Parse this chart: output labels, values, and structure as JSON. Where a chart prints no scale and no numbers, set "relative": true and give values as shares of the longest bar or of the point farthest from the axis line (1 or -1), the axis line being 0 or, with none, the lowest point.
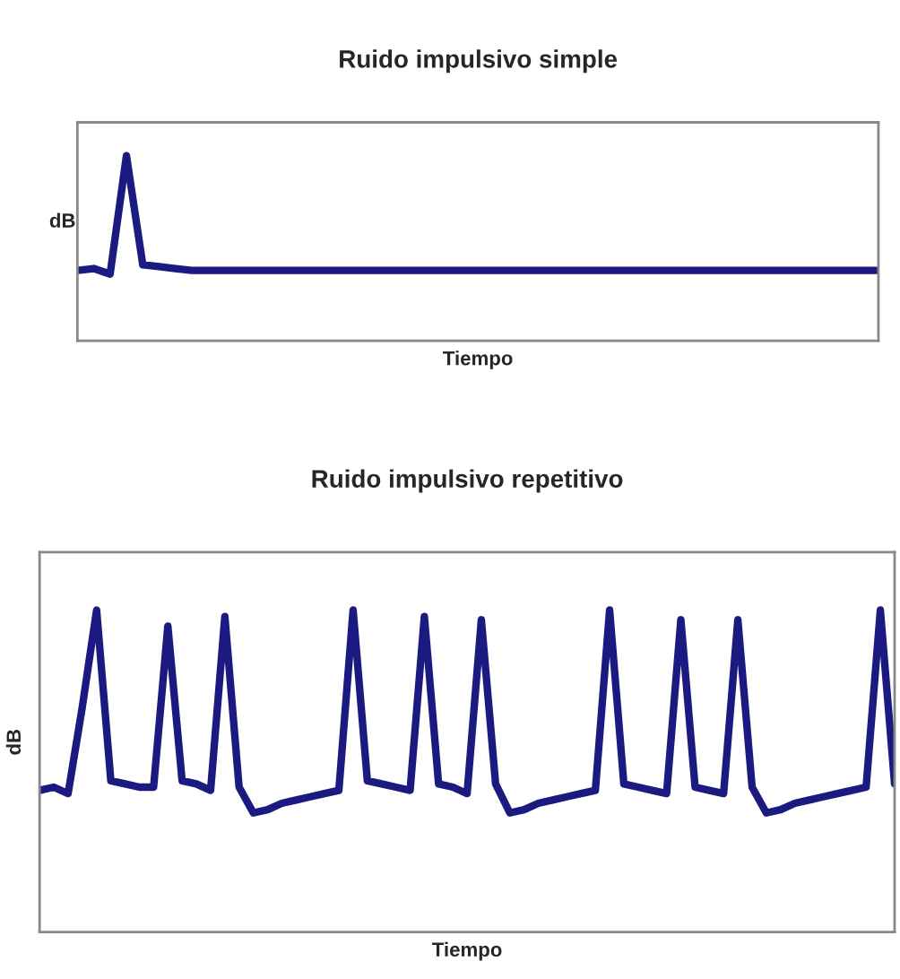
{
  "chart_data": [
    {
      "type": "line",
      "title": "Ruido impulsivo simple",
      "xlabel": "Tiempo",
      "ylabel": "dB",
      "relative": true,
      "legend": false,
      "categories": [
        null,
        null,
        null,
        null,
        null,
        null,
        null,
        null,
        null,
        null,
        null,
        null,
        null,
        null,
        null,
        null,
        null,
        null,
        null,
        null,
        null,
        null,
        null,
        null,
        null,
        null,
        null,
        null,
        null,
        null,
        null,
        null,
        null,
        null,
        null,
        null,
        null,
        null,
        null,
        null,
        null,
        null,
        null,
        null,
        null,
        null,
        null,
        null,
        null,
        null
      ],
      "series": [
        {
          "color": "#1a1a80",
          "values": [
            0.38,
            0.39,
            0.36,
            1.0,
            0.41,
            0.4,
            0.39,
            0.38,
            0.38,
            0.38,
            0.38,
            0.38,
            0.38,
            0.38,
            0.38,
            0.38,
            0.38,
            0.38,
            0.38,
            0.38,
            0.38,
            0.38,
            0.38,
            0.38,
            0.38,
            0.38,
            0.38,
            0.38,
            0.38,
            0.38,
            0.38,
            0.38,
            0.38,
            0.38,
            0.38,
            0.38,
            0.38,
            0.38,
            0.38,
            0.38,
            0.38,
            0.38,
            0.38,
            0.38,
            0.38,
            0.38,
            0.38,
            0.38,
            0.38,
            0.38
          ]
        }
      ]
    },
    {
      "type": "line",
      "title": "Ruido impulsivo repetitivo",
      "xlabel": "Tiempo",
      "ylabel": "dB",
      "relative": true,
      "legend": false,
      "categories": [
        null,
        null,
        null,
        null,
        null,
        null,
        null,
        null,
        null,
        null,
        null,
        null,
        null,
        null,
        null,
        null,
        null,
        null,
        null,
        null,
        null,
        null,
        null,
        null,
        null,
        null,
        null,
        null,
        null,
        null,
        null,
        null,
        null,
        null,
        null,
        null,
        null,
        null,
        null,
        null,
        null,
        null,
        null,
        null,
        null,
        null,
        null,
        null,
        null,
        null,
        null,
        null,
        null,
        null,
        null,
        null,
        null,
        null,
        null,
        null,
        null
      ],
      "series": [
        {
          "color": "#1a1a80",
          "values": [
            0.44,
            0.45,
            0.43,
            0.7,
            1.0,
            0.47,
            0.46,
            0.45,
            0.45,
            0.95,
            0.47,
            0.46,
            0.44,
            0.98,
            0.45,
            0.37,
            0.38,
            0.4,
            0.41,
            0.42,
            0.43,
            0.44,
            1.0,
            0.47,
            0.46,
            0.45,
            0.44,
            0.98,
            0.46,
            0.45,
            0.43,
            0.97,
            0.46,
            0.37,
            0.38,
            0.4,
            0.41,
            0.42,
            0.43,
            0.44,
            1.0,
            0.46,
            0.45,
            0.44,
            0.43,
            0.97,
            0.45,
            0.44,
            0.43,
            0.97,
            0.45,
            0.37,
            0.38,
            0.4,
            0.41,
            0.42,
            0.43,
            0.44,
            0.45,
            1.0,
            0.46
          ]
        }
      ]
    }
  ]
}
